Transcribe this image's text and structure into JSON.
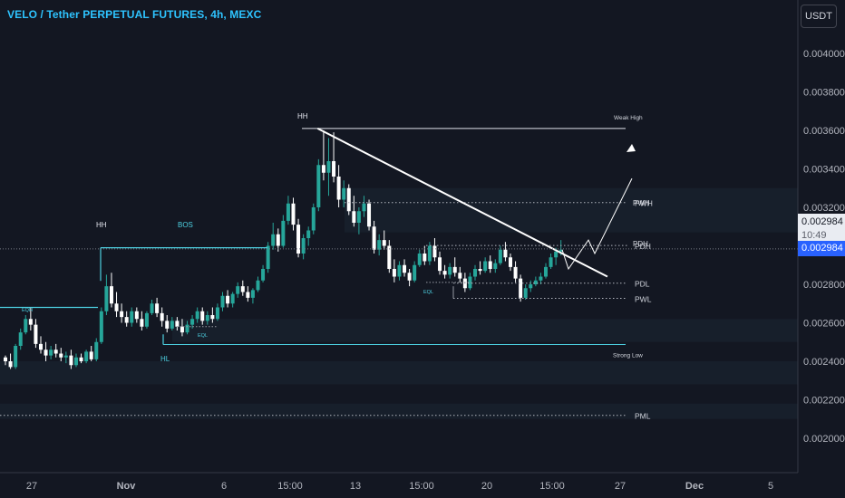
{
  "header": {
    "title": "VELO / Tether PERPETUAL FUTURES, 4h, MEXC"
  },
  "toolbar": {
    "currency_label": "USDT"
  },
  "price_tags": {
    "price": "0.002984",
    "countdown": "10:49",
    "last": "0.002984"
  },
  "colors": {
    "background": "#131722",
    "up": "#26a69a",
    "down": "#ffffff",
    "accent": "#2ec4ff",
    "structure": "#4dd0e1",
    "zone": "#1c2633"
  },
  "chart_data": {
    "type": "candlestick",
    "title": "VELO / Tether PERPETUAL FUTURES, 4h, MEXC",
    "xlabel": "",
    "ylabel": "",
    "y_ticks": [
      "0.004000",
      "0.003800",
      "0.003600",
      "0.003400",
      "0.003200",
      "0.003000",
      "0.002800",
      "0.002600",
      "0.002400",
      "0.002200",
      "0.002000"
    ],
    "x_ticks": [
      "27",
      "Nov",
      "6",
      "15:00",
      "13",
      "15:00",
      "20",
      "15:00",
      "27",
      "Dec",
      "5"
    ],
    "ylim": [
      0.00193,
      0.00422
    ],
    "grid": false,
    "price_line": 0.002984,
    "candles": [
      [
        0.00242,
        0.00243,
        0.00238,
        0.0024
      ],
      [
        0.0024,
        0.00244,
        0.00236,
        0.00237
      ],
      [
        0.00237,
        0.00249,
        0.00236,
        0.00248
      ],
      [
        0.00248,
        0.00257,
        0.00246,
        0.00255
      ],
      [
        0.00255,
        0.00264,
        0.00254,
        0.00262
      ],
      [
        0.00262,
        0.00268,
        0.00256,
        0.00259
      ],
      [
        0.00259,
        0.00262,
        0.00247,
        0.00249
      ],
      [
        0.00249,
        0.00253,
        0.00244,
        0.00246
      ],
      [
        0.00246,
        0.0025,
        0.0024,
        0.00243
      ],
      [
        0.00243,
        0.00248,
        0.00241,
        0.00246
      ],
      [
        0.00246,
        0.00249,
        0.00242,
        0.00244
      ],
      [
        0.00244,
        0.00247,
        0.0024,
        0.00242
      ],
      [
        0.00242,
        0.00245,
        0.00239,
        0.00243
      ],
      [
        0.00243,
        0.00246,
        0.00236,
        0.00238
      ],
      [
        0.00238,
        0.00244,
        0.00237,
        0.00242
      ],
      [
        0.00242,
        0.00244,
        0.00239,
        0.0024
      ],
      [
        0.0024,
        0.00246,
        0.00239,
        0.00245
      ],
      [
        0.00245,
        0.00248,
        0.0024,
        0.00241
      ],
      [
        0.00241,
        0.00252,
        0.0024,
        0.0025
      ],
      [
        0.0025,
        0.00268,
        0.00249,
        0.00266
      ],
      [
        0.00266,
        0.00285,
        0.00264,
        0.00279
      ],
      [
        0.00279,
        0.00286,
        0.00268,
        0.0027
      ],
      [
        0.0027,
        0.00276,
        0.00263,
        0.00266
      ],
      [
        0.00266,
        0.0027,
        0.0026,
        0.00263
      ],
      [
        0.00263,
        0.00266,
        0.00258,
        0.0026
      ],
      [
        0.0026,
        0.00268,
        0.00258,
        0.00266
      ],
      [
        0.00266,
        0.00268,
        0.0026,
        0.00262
      ],
      [
        0.00262,
        0.00266,
        0.00256,
        0.00258
      ],
      [
        0.00258,
        0.00266,
        0.00257,
        0.00265
      ],
      [
        0.00265,
        0.00272,
        0.00264,
        0.0027
      ],
      [
        0.0027,
        0.00273,
        0.00263,
        0.00265
      ],
      [
        0.00265,
        0.00268,
        0.00258,
        0.00261
      ],
      [
        0.00261,
        0.00264,
        0.00255,
        0.00257
      ],
      [
        0.00257,
        0.00263,
        0.00256,
        0.00261
      ],
      [
        0.00261,
        0.00263,
        0.00256,
        0.00258
      ],
      [
        0.00258,
        0.00262,
        0.00253,
        0.00255
      ],
      [
        0.00255,
        0.00261,
        0.00254,
        0.00259
      ],
      [
        0.00259,
        0.00264,
        0.00257,
        0.00262
      ],
      [
        0.00262,
        0.00268,
        0.0026,
        0.00266
      ],
      [
        0.00266,
        0.00268,
        0.00259,
        0.00261
      ],
      [
        0.00261,
        0.00266,
        0.00259,
        0.00264
      ],
      [
        0.00264,
        0.00268,
        0.0026,
        0.00262
      ],
      [
        0.00262,
        0.0027,
        0.00261,
        0.00268
      ],
      [
        0.00268,
        0.00276,
        0.00266,
        0.00274
      ],
      [
        0.00274,
        0.00277,
        0.00268,
        0.0027
      ],
      [
        0.0027,
        0.00276,
        0.00268,
        0.00275
      ],
      [
        0.00275,
        0.00281,
        0.00273,
        0.00279
      ],
      [
        0.00279,
        0.00282,
        0.00274,
        0.00276
      ],
      [
        0.00276,
        0.00279,
        0.00271,
        0.00273
      ],
      [
        0.00273,
        0.00278,
        0.0027,
        0.00277
      ],
      [
        0.00277,
        0.00284,
        0.00276,
        0.00282
      ],
      [
        0.00282,
        0.0029,
        0.00281,
        0.00288
      ],
      [
        0.00288,
        0.00302,
        0.00286,
        0.003
      ],
      [
        0.003,
        0.00312,
        0.00298,
        0.00306
      ],
      [
        0.00306,
        0.00309,
        0.00297,
        0.003
      ],
      [
        0.003,
        0.00316,
        0.00299,
        0.00313
      ],
      [
        0.00313,
        0.00326,
        0.00311,
        0.00322
      ],
      [
        0.00322,
        0.00325,
        0.00308,
        0.00311
      ],
      [
        0.00311,
        0.00314,
        0.00294,
        0.00296
      ],
      [
        0.00296,
        0.00306,
        0.00293,
        0.00304
      ],
      [
        0.00304,
        0.0031,
        0.003,
        0.00308
      ],
      [
        0.00308,
        0.00322,
        0.00306,
        0.0032
      ],
      [
        0.0032,
        0.00345,
        0.00318,
        0.00342
      ],
      [
        0.00342,
        0.0036,
        0.00334,
        0.00338
      ],
      [
        0.00338,
        0.00356,
        0.00326,
        0.00344
      ],
      [
        0.00344,
        0.00359,
        0.00333,
        0.00336
      ],
      [
        0.00336,
        0.00342,
        0.0032,
        0.00324
      ],
      [
        0.00324,
        0.00334,
        0.0032,
        0.0033
      ],
      [
        0.0033,
        0.00332,
        0.00316,
        0.00318
      ],
      [
        0.00318,
        0.00326,
        0.0031,
        0.00312
      ],
      [
        0.00312,
        0.0032,
        0.00306,
        0.00318
      ],
      [
        0.00318,
        0.00326,
        0.00315,
        0.00322
      ],
      [
        0.00322,
        0.00324,
        0.00308,
        0.0031
      ],
      [
        0.0031,
        0.00313,
        0.00296,
        0.00298
      ],
      [
        0.00298,
        0.00306,
        0.00295,
        0.00303
      ],
      [
        0.00303,
        0.00308,
        0.00298,
        0.003
      ],
      [
        0.003,
        0.00303,
        0.00286,
        0.00288
      ],
      [
        0.00288,
        0.00293,
        0.00281,
        0.00284
      ],
      [
        0.00284,
        0.00292,
        0.00282,
        0.0029
      ],
      [
        0.0029,
        0.00293,
        0.00284,
        0.00286
      ],
      [
        0.00286,
        0.00288,
        0.00279,
        0.00282
      ],
      [
        0.00282,
        0.00292,
        0.00281,
        0.0029
      ],
      [
        0.0029,
        0.00298,
        0.00289,
        0.00296
      ],
      [
        0.00296,
        0.003,
        0.0029,
        0.00292
      ],
      [
        0.00292,
        0.00302,
        0.0029,
        0.003
      ],
      [
        0.003,
        0.00304,
        0.00292,
        0.00294
      ],
      [
        0.00294,
        0.00297,
        0.00285,
        0.00287
      ],
      [
        0.00287,
        0.0029,
        0.00283,
        0.00285
      ],
      [
        0.00285,
        0.00291,
        0.00283,
        0.00289
      ],
      [
        0.00289,
        0.00294,
        0.00284,
        0.00286
      ],
      [
        0.00286,
        0.00289,
        0.00281,
        0.00283
      ],
      [
        0.00283,
        0.00286,
        0.00276,
        0.00278
      ],
      [
        0.00278,
        0.00286,
        0.00277,
        0.00284
      ],
      [
        0.00284,
        0.0029,
        0.00282,
        0.00288
      ],
      [
        0.00288,
        0.00292,
        0.00285,
        0.00287
      ],
      [
        0.00287,
        0.00294,
        0.00286,
        0.00292
      ],
      [
        0.00292,
        0.00295,
        0.00286,
        0.00288
      ],
      [
        0.00288,
        0.00293,
        0.00286,
        0.00291
      ],
      [
        0.00291,
        0.003,
        0.0029,
        0.00298
      ],
      [
        0.00298,
        0.00302,
        0.00292,
        0.00294
      ],
      [
        0.00294,
        0.00296,
        0.00287,
        0.00289
      ],
      [
        0.00289,
        0.00292,
        0.00281,
        0.00283
      ],
      [
        0.00283,
        0.00285,
        0.00271,
        0.00273
      ],
      [
        0.00273,
        0.0028,
        0.00272,
        0.00278
      ],
      [
        0.00278,
        0.00282,
        0.00276,
        0.0028
      ],
      [
        0.0028,
        0.00284,
        0.00279,
        0.00282
      ],
      [
        0.00282,
        0.00286,
        0.0028,
        0.00284
      ],
      [
        0.00284,
        0.00291,
        0.00283,
        0.00289
      ],
      [
        0.00289,
        0.00296,
        0.00288,
        0.00294
      ],
      [
        0.00294,
        0.00299,
        0.0029,
        0.00297
      ],
      [
        0.00297,
        0.00303,
        0.00295,
        0.00298
      ]
    ],
    "levels": [
      {
        "label": "Weak High",
        "value": 0.00361,
        "style": "solid"
      },
      {
        "label": "PWH",
        "value": 0.003225,
        "style": "dotted"
      },
      {
        "label": "PDH",
        "value": 0.003002,
        "style": "dotted"
      },
      {
        "label": "PDL",
        "value": 0.002806,
        "style": "dotted"
      },
      {
        "label": "PWL",
        "value": 0.002727,
        "style": "dotted"
      },
      {
        "label": "Strong Low",
        "value": 0.002487,
        "style": "solid"
      },
      {
        "label": "PML",
        "value": 0.002119,
        "style": "dotted"
      }
    ],
    "annotations": [
      "HH",
      "HH",
      "BOS",
      "HL",
      "EQH",
      "EQL",
      "EQL",
      "PWH",
      "PDH"
    ],
    "trendline": {
      "from_candle": 62,
      "from_value": 0.00361,
      "to_value": 0.00284
    },
    "projection": [
      0.00298,
      0.00288,
      0.00303,
      0.00296,
      0.00335
    ]
  }
}
